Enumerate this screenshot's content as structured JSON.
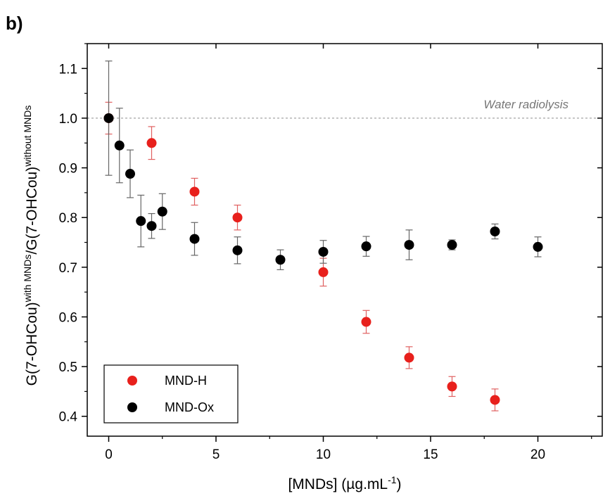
{
  "panel_label": "b)",
  "chart_data": {
    "type": "scatter",
    "xlabel_main": "[MNDs] (µg.mL",
    "xlabel_sup": "-1",
    "xlabel_end": ")",
    "ylabel_parts": [
      {
        "text": "G(7-OHCou)",
        "sup": false
      },
      {
        "text": "with MNDs",
        "sup": true
      },
      {
        "text": "/G(7-OHCou)",
        "sup": false
      },
      {
        "text": "without MNDs",
        "sup": true
      }
    ],
    "xlim": [
      -1,
      23
    ],
    "ylim": [
      0.36,
      1.15
    ],
    "xticks": [
      0,
      5,
      10,
      15,
      20
    ],
    "xtick_labels": [
      "0",
      "5",
      "10",
      "15",
      "20"
    ],
    "yticks": [
      0.4,
      0.5,
      0.6,
      0.7,
      0.8,
      0.9,
      1.0,
      1.1
    ],
    "ytick_labels": [
      "0.4",
      "0.5",
      "0.6",
      "0.7",
      "0.8",
      "0.9",
      "1.0",
      "1.1"
    ],
    "reference_line": {
      "y": 1.0,
      "label": "Water radiolysis"
    },
    "legend_position": "bottom-left",
    "series": [
      {
        "name": "MND-H",
        "color": "#e8201c",
        "x": [
          0,
          2,
          4,
          6,
          10,
          12,
          14,
          16,
          18
        ],
        "y": [
          1.0,
          0.95,
          0.852,
          0.8,
          0.69,
          0.59,
          0.518,
          0.46,
          0.433
        ],
        "err": [
          0.032,
          0.033,
          0.027,
          0.025,
          0.028,
          0.023,
          0.022,
          0.02,
          0.022
        ]
      },
      {
        "name": "MND-Ox",
        "color": "#000000",
        "x": [
          0,
          0.5,
          1,
          1.5,
          2,
          2.5,
          4,
          6,
          8,
          10,
          12,
          14,
          16,
          18,
          20
        ],
        "y": [
          1.0,
          0.945,
          0.888,
          0.793,
          0.783,
          0.812,
          0.757,
          0.734,
          0.715,
          0.731,
          0.742,
          0.745,
          0.745,
          0.772,
          0.741
        ],
        "err": [
          0.115,
          0.075,
          0.048,
          0.052,
          0.025,
          0.036,
          0.033,
          0.027,
          0.02,
          0.023,
          0.02,
          0.03,
          0.01,
          0.015,
          0.02
        ]
      }
    ]
  }
}
